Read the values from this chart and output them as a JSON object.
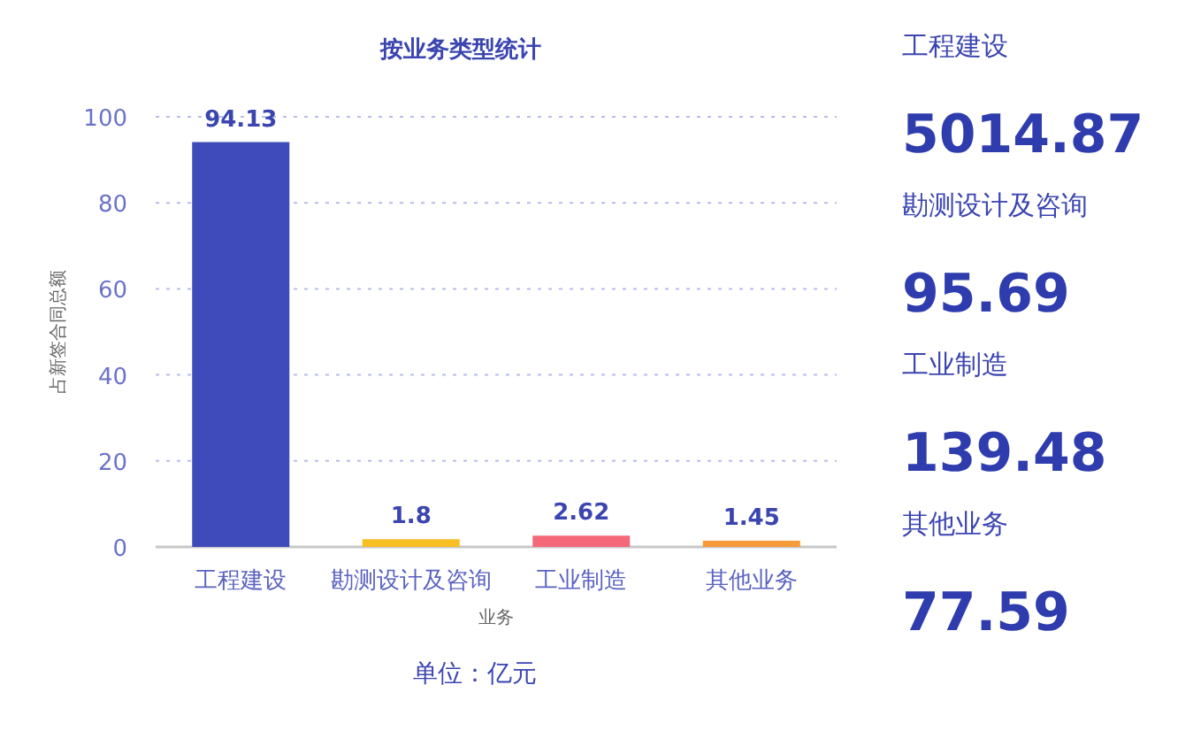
{
  "chart_data": [
    {
      "type": "bar",
      "title": "按业务类型统计",
      "ylabel": "占新签合同总额",
      "xlabel": "业务",
      "categories": [
        "工程建设",
        "勘测设计及咨询",
        "工业制造",
        "其他业务"
      ],
      "values": [
        94.13,
        1.8,
        2.62,
        1.45
      ],
      "colors": [
        "#3f4bbb",
        "#f7bf24",
        "#f4687a",
        "#f79a3a"
      ],
      "ylim": [
        0,
        100
      ],
      "yticks": [
        0,
        20,
        40,
        60,
        80,
        100
      ],
      "grid": "y",
      "data_labels": true,
      "annotations": [
        "单位：亿元"
      ]
    },
    {
      "type": "other",
      "annotations": [
        "工程建设",
        "5014.87",
        "勘测设计及咨询",
        "95.69",
        "工业制造",
        "139.48",
        "其他业务",
        "77.59"
      ]
    }
  ]
}
